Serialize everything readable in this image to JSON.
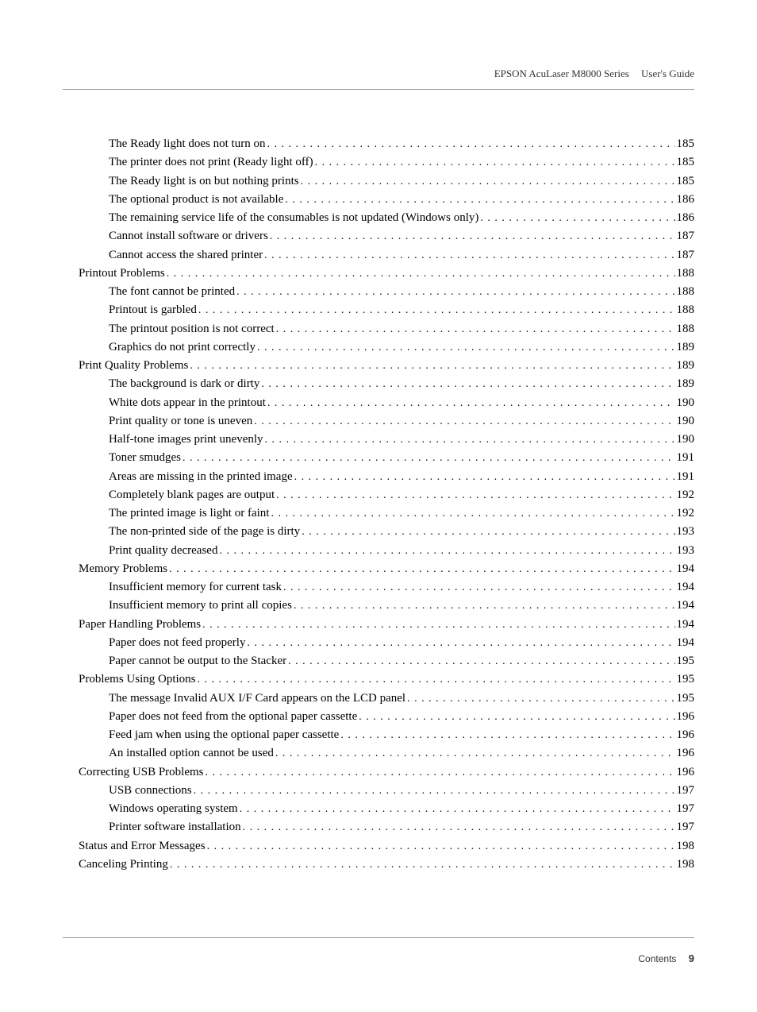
{
  "header": {
    "title": "EPSON AcuLaser M8000 Series",
    "subtitle": "User's Guide"
  },
  "toc": {
    "entries": [
      {
        "level": 2,
        "label": "The Ready light does not turn on",
        "page": "185"
      },
      {
        "level": 2,
        "label": "The printer does not print (Ready light off)",
        "page": "185"
      },
      {
        "level": 2,
        "label": "The Ready light is on but nothing prints",
        "page": "185"
      },
      {
        "level": 2,
        "label": "The optional product is not available",
        "page": "186"
      },
      {
        "level": 2,
        "label": "The remaining service life of the consumables is not updated (Windows only)",
        "page": "186"
      },
      {
        "level": 2,
        "label": "Cannot install software or drivers",
        "page": "187"
      },
      {
        "level": 2,
        "label": "Cannot access the shared printer",
        "page": "187"
      },
      {
        "level": 1,
        "label": "Printout Problems",
        "page": "188"
      },
      {
        "level": 2,
        "label": "The font cannot be printed",
        "page": "188"
      },
      {
        "level": 2,
        "label": "Printout is garbled",
        "page": "188"
      },
      {
        "level": 2,
        "label": "The printout position is not correct",
        "page": "188"
      },
      {
        "level": 2,
        "label": "Graphics do not print correctly",
        "page": "189"
      },
      {
        "level": 1,
        "label": "Print Quality Problems",
        "page": "189"
      },
      {
        "level": 2,
        "label": "The background is dark or dirty",
        "page": "189"
      },
      {
        "level": 2,
        "label": "White dots appear in the printout",
        "page": "190"
      },
      {
        "level": 2,
        "label": "Print quality or tone is uneven",
        "page": "190"
      },
      {
        "level": 2,
        "label": "Half-tone images print unevenly",
        "page": "190"
      },
      {
        "level": 2,
        "label": "Toner smudges",
        "page": "191"
      },
      {
        "level": 2,
        "label": "Areas are missing in the printed image",
        "page": "191"
      },
      {
        "level": 2,
        "label": "Completely blank pages are output",
        "page": "192"
      },
      {
        "level": 2,
        "label": "The printed image is light or faint",
        "page": "192"
      },
      {
        "level": 2,
        "label": "The non-printed side of the page is dirty",
        "page": "193"
      },
      {
        "level": 2,
        "label": "Print quality decreased",
        "page": "193"
      },
      {
        "level": 1,
        "label": "Memory Problems",
        "page": "194"
      },
      {
        "level": 2,
        "label": "Insufficient memory for current task",
        "page": "194"
      },
      {
        "level": 2,
        "label": "Insufficient memory to print all copies",
        "page": "194"
      },
      {
        "level": 1,
        "label": "Paper Handling Problems",
        "page": "194"
      },
      {
        "level": 2,
        "label": "Paper does not feed properly",
        "page": "194"
      },
      {
        "level": 2,
        "label": "Paper cannot be output to the Stacker",
        "page": "195"
      },
      {
        "level": 1,
        "label": "Problems Using Options",
        "page": "195"
      },
      {
        "level": 2,
        "label": "The message Invalid AUX I/F Card appears on the LCD panel",
        "page": "195"
      },
      {
        "level": 2,
        "label": "Paper does not feed from the optional paper cassette",
        "page": "196"
      },
      {
        "level": 2,
        "label": "Feed jam when using the optional paper cassette",
        "page": "196"
      },
      {
        "level": 2,
        "label": "An installed option cannot be used",
        "page": "196"
      },
      {
        "level": 1,
        "label": "Correcting USB Problems",
        "page": "196"
      },
      {
        "level": 2,
        "label": "USB connections",
        "page": "197"
      },
      {
        "level": 2,
        "label": "Windows operating system",
        "page": "197"
      },
      {
        "level": 2,
        "label": "Printer software installation",
        "page": "197"
      },
      {
        "level": 1,
        "label": "Status and Error Messages",
        "page": "198"
      },
      {
        "level": 1,
        "label": "Canceling Printing",
        "page": "198"
      }
    ]
  },
  "footer": {
    "label": "Contents",
    "page": "9"
  }
}
